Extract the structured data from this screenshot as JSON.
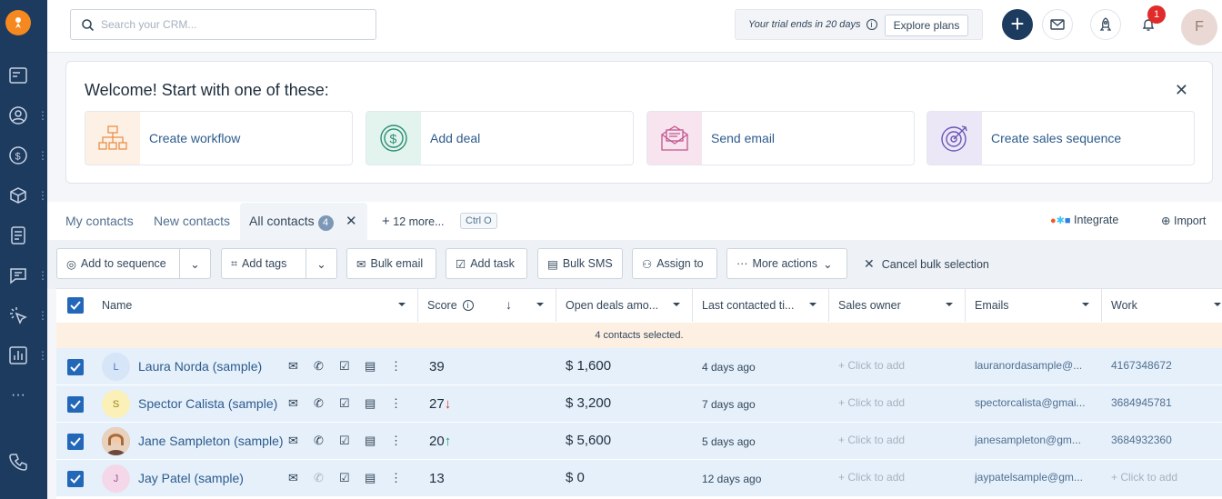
{
  "sidebar": {
    "items": [
      "logo-icon",
      "reports-icon",
      "contacts-icon",
      "deals-icon",
      "products-icon",
      "documents-icon",
      "conversations-icon",
      "automation-icon",
      "analytics-icon",
      "more-icon",
      "phone-icon"
    ]
  },
  "search": {
    "placeholder": "Search your CRM..."
  },
  "trial": {
    "text": "Your trial ends in 20 days",
    "button": "Explore plans"
  },
  "notifications": {
    "count": "1"
  },
  "profile": {
    "initial": "F"
  },
  "welcome": {
    "title": "Welcome! Start with one of these:",
    "cards": [
      {
        "label": "Create workflow",
        "icon": "workflow-icon",
        "bg": "#fdf1e6"
      },
      {
        "label": "Add deal",
        "icon": "dollar-icon",
        "bg": "#e3f4ef"
      },
      {
        "label": "Send email",
        "icon": "email-icon",
        "bg": "#f7e4ef"
      },
      {
        "label": "Create sales sequence",
        "icon": "target-icon",
        "bg": "#ebe7f7"
      }
    ]
  },
  "tabs": {
    "my_contacts": "My contacts",
    "new_contacts": "New contacts",
    "all_contacts": "All contacts",
    "all_count": "4",
    "more": "12 more...",
    "shortcut": "Ctrl O",
    "integrate": "Integrate",
    "import": "Import"
  },
  "actions": {
    "add_to_sequence": "Add to sequence",
    "add_tags": "Add tags",
    "bulk_email": "Bulk email",
    "add_task": "Add task",
    "bulk_sms": "Bulk SMS",
    "assign_to": "Assign to",
    "more_actions": "More actions",
    "cancel_bulk": "Cancel bulk selection"
  },
  "table": {
    "headers": {
      "name": "Name",
      "score": "Score",
      "open_deals": "Open deals amo...",
      "last_contacted": "Last contacted ti...",
      "sales_owner": "Sales owner",
      "emails": "Emails",
      "work": "Work"
    },
    "selected_text": "4 contacts selected.",
    "rows": [
      {
        "initial": "L",
        "name": "Laura Norda (sample)",
        "score": "39",
        "trend": "",
        "deal": "$ 1,600",
        "last": "4 days ago",
        "owner": "+ Click to add",
        "email": "lauranordasample@...",
        "work": "4167348672",
        "avatar_bg": "#d6e5f7",
        "avatar_fg": "#4b7cb8"
      },
      {
        "initial": "S",
        "name": "Spector Calista (sample)",
        "score": "27",
        "trend": "down",
        "deal": "$ 3,200",
        "last": "7 days ago",
        "owner": "+ Click to add",
        "email": "spectorcalista@gmai...",
        "work": "3684945781",
        "avatar_bg": "#faf0b8",
        "avatar_fg": "#9a8420"
      },
      {
        "initial": "",
        "name": "Jane Sampleton (sample)",
        "score": "20",
        "trend": "up",
        "deal": "$ 5,600",
        "last": "5 days ago",
        "owner": "+ Click to add",
        "email": "janesampleton@gm...",
        "work": "3684932360",
        "avatar_bg": "#c68a5a",
        "avatar_fg": "#fff"
      },
      {
        "initial": "J",
        "name": "Jay Patel (sample)",
        "score": "13",
        "trend": "",
        "deal": "$ 0",
        "last": "12 days ago",
        "owner": "+ Click to add",
        "email": "jaypatelsample@gm...",
        "work": "+ Click to add",
        "avatar_bg": "#f5d7ea",
        "avatar_fg": "#a25486"
      }
    ]
  },
  "colors": {
    "accent": "#2367b8",
    "sidebar": "#1d3a5f",
    "trend_down": "#d9342b",
    "trend_up": "#1a9e6b"
  }
}
